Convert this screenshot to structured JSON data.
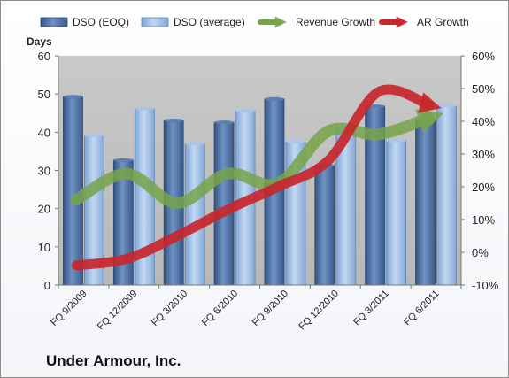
{
  "chart_data": {
    "type": "bar",
    "title": "Under Armour, Inc.",
    "ylabel": "Days",
    "ylim": [
      0,
      60
    ],
    "y2lim": [
      -10,
      60
    ],
    "y2_unit": "%",
    "categories": [
      "FQ 9/2009",
      "FQ 12/2009",
      "FQ 3/2010",
      "FQ 6/2010",
      "FQ 9/2010",
      "FQ 12/2010",
      "FQ 3/2011",
      "FQ 6/2011"
    ],
    "yticks": [
      "0",
      "10",
      "20",
      "30",
      "40",
      "50",
      "60"
    ],
    "y2ticks": [
      "-10%",
      "0%",
      "10%",
      "20%",
      "30%",
      "40%",
      "50%",
      "60%"
    ],
    "series": [
      {
        "name": "DSO (EOQ)",
        "kind": "bar",
        "axis": "left",
        "color": "#4a6fa5",
        "values": [
          49.3,
          32.7,
          43.1,
          42.6,
          48.7,
          31.3,
          46.8,
          43.2
        ]
      },
      {
        "name": "DSO (average)",
        "kind": "bar",
        "axis": "left",
        "color": "#8fb3e0",
        "values": [
          39.2,
          46.2,
          37.0,
          45.6,
          37.6,
          41.8,
          37.8,
          46.9
        ]
      },
      {
        "name": "Revenue Growth",
        "kind": "line",
        "axis": "right",
        "color": "#77a34a",
        "values": [
          16,
          24,
          15,
          24,
          21,
          37,
          36,
          41
        ]
      },
      {
        "name": "AR Growth",
        "kind": "line",
        "axis": "right",
        "color": "#c8262d",
        "values": [
          -4,
          -2,
          5,
          13,
          20,
          28,
          49,
          45
        ]
      }
    ],
    "grid": false,
    "legend": "top"
  }
}
